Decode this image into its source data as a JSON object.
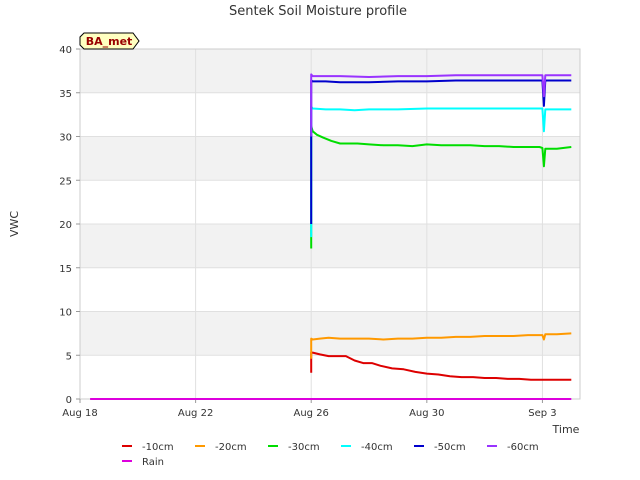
{
  "chart_data": {
    "type": "line",
    "title": "Sentek Soil Moisture profile",
    "xlabel": "Time",
    "ylabel": "VWC",
    "site_label": "BA_met",
    "xlim": [
      0,
      17.3
    ],
    "ylim": [
      0,
      40
    ],
    "x_ticks": [
      {
        "x": 0,
        "label": "Aug 18"
      },
      {
        "x": 4,
        "label": "Aug 22"
      },
      {
        "x": 8,
        "label": "Aug 26"
      },
      {
        "x": 12,
        "label": "Aug 30"
      },
      {
        "x": 16,
        "label": "Sep 3"
      }
    ],
    "y_ticks": [
      0,
      5,
      10,
      15,
      20,
      25,
      30,
      35,
      40
    ],
    "series": [
      {
        "name": "-10cm",
        "color": "#dd0000",
        "x": [
          8.0,
          8.0,
          8.05,
          8.3,
          8.6,
          8.9,
          9.2,
          9.5,
          9.8,
          10.1,
          10.4,
          10.8,
          11.2,
          11.6,
          12.0,
          12.4,
          12.8,
          13.2,
          13.6,
          14.0,
          14.4,
          14.8,
          15.2,
          15.6,
          16.0,
          16.5,
          17.0
        ],
        "values": [
          3.0,
          5.3,
          5.3,
          5.1,
          4.9,
          4.9,
          4.9,
          4.4,
          4.1,
          4.1,
          3.8,
          3.5,
          3.4,
          3.1,
          2.9,
          2.8,
          2.6,
          2.5,
          2.5,
          2.4,
          2.4,
          2.3,
          2.3,
          2.2,
          2.2,
          2.2,
          2.2
        ]
      },
      {
        "name": "-20cm",
        "color": "#ff9900",
        "x": [
          8.0,
          8.0,
          8.05,
          8.3,
          8.6,
          9.0,
          9.5,
          10.0,
          10.5,
          11.0,
          11.5,
          12.0,
          12.5,
          13.0,
          13.5,
          14.0,
          14.5,
          15.0,
          15.5,
          15.9,
          16.0,
          16.05,
          16.1,
          16.5,
          17.0
        ],
        "values": [
          4.6,
          6.9,
          6.8,
          6.9,
          7.0,
          6.9,
          6.9,
          6.9,
          6.8,
          6.9,
          6.9,
          7.0,
          7.0,
          7.1,
          7.1,
          7.2,
          7.2,
          7.2,
          7.3,
          7.3,
          7.3,
          6.8,
          7.4,
          7.4,
          7.5
        ]
      },
      {
        "name": "-30cm",
        "color": "#00dd00",
        "x": [
          8.0,
          8.0,
          8.05,
          8.2,
          8.4,
          8.7,
          9.0,
          9.3,
          9.6,
          10.0,
          10.5,
          11.0,
          11.5,
          12.0,
          12.5,
          13.0,
          13.5,
          14.0,
          14.5,
          15.0,
          15.5,
          15.9,
          16.0,
          16.05,
          16.1,
          16.5,
          17.0
        ],
        "values": [
          17.2,
          31.2,
          30.6,
          30.2,
          29.9,
          29.5,
          29.2,
          29.2,
          29.2,
          29.1,
          29.0,
          29.0,
          28.9,
          29.1,
          29.0,
          29.0,
          29.0,
          28.9,
          28.9,
          28.8,
          28.8,
          28.8,
          28.7,
          26.6,
          28.6,
          28.6,
          28.8
        ]
      },
      {
        "name": "-40cm",
        "color": "#00ffff",
        "x": [
          8.0,
          8.0,
          8.05,
          8.5,
          9.0,
          9.5,
          10.0,
          11.0,
          12.0,
          13.0,
          14.0,
          15.0,
          15.9,
          16.0,
          16.05,
          16.1,
          16.5,
          17.0
        ],
        "values": [
          18.5,
          33.4,
          33.2,
          33.1,
          33.1,
          33.0,
          33.1,
          33.1,
          33.2,
          33.2,
          33.2,
          33.2,
          33.2,
          33.2,
          30.6,
          33.1,
          33.1,
          33.1
        ]
      },
      {
        "name": "-50cm",
        "color": "#0000cc",
        "x": [
          8.0,
          8.0,
          8.05,
          8.5,
          9.0,
          10.0,
          11.0,
          12.0,
          13.0,
          14.0,
          15.0,
          15.9,
          16.0,
          16.05,
          16.1,
          16.5,
          17.0
        ],
        "values": [
          20.0,
          36.4,
          36.3,
          36.3,
          36.2,
          36.2,
          36.3,
          36.3,
          36.4,
          36.4,
          36.4,
          36.4,
          36.4,
          33.5,
          36.4,
          36.4,
          36.4
        ]
      },
      {
        "name": "-60cm",
        "color": "#9933ff",
        "x": [
          8.0,
          8.0,
          8.05,
          8.5,
          9.0,
          10.0,
          11.0,
          12.0,
          13.0,
          14.0,
          15.0,
          15.9,
          16.0,
          16.05,
          16.1,
          16.5,
          17.0
        ],
        "values": [
          30.0,
          37.1,
          36.9,
          36.9,
          36.9,
          36.8,
          36.9,
          36.9,
          37.0,
          37.0,
          37.0,
          37.0,
          37.0,
          34.6,
          37.0,
          37.0,
          37.0
        ]
      },
      {
        "name": "Rain",
        "color": "#dd00dd",
        "x": [
          0.35,
          17.0
        ],
        "values": [
          0,
          0
        ]
      }
    ],
    "grid": true,
    "background_bands": "alternating grey every 5 units",
    "legend_position": "bottom"
  }
}
